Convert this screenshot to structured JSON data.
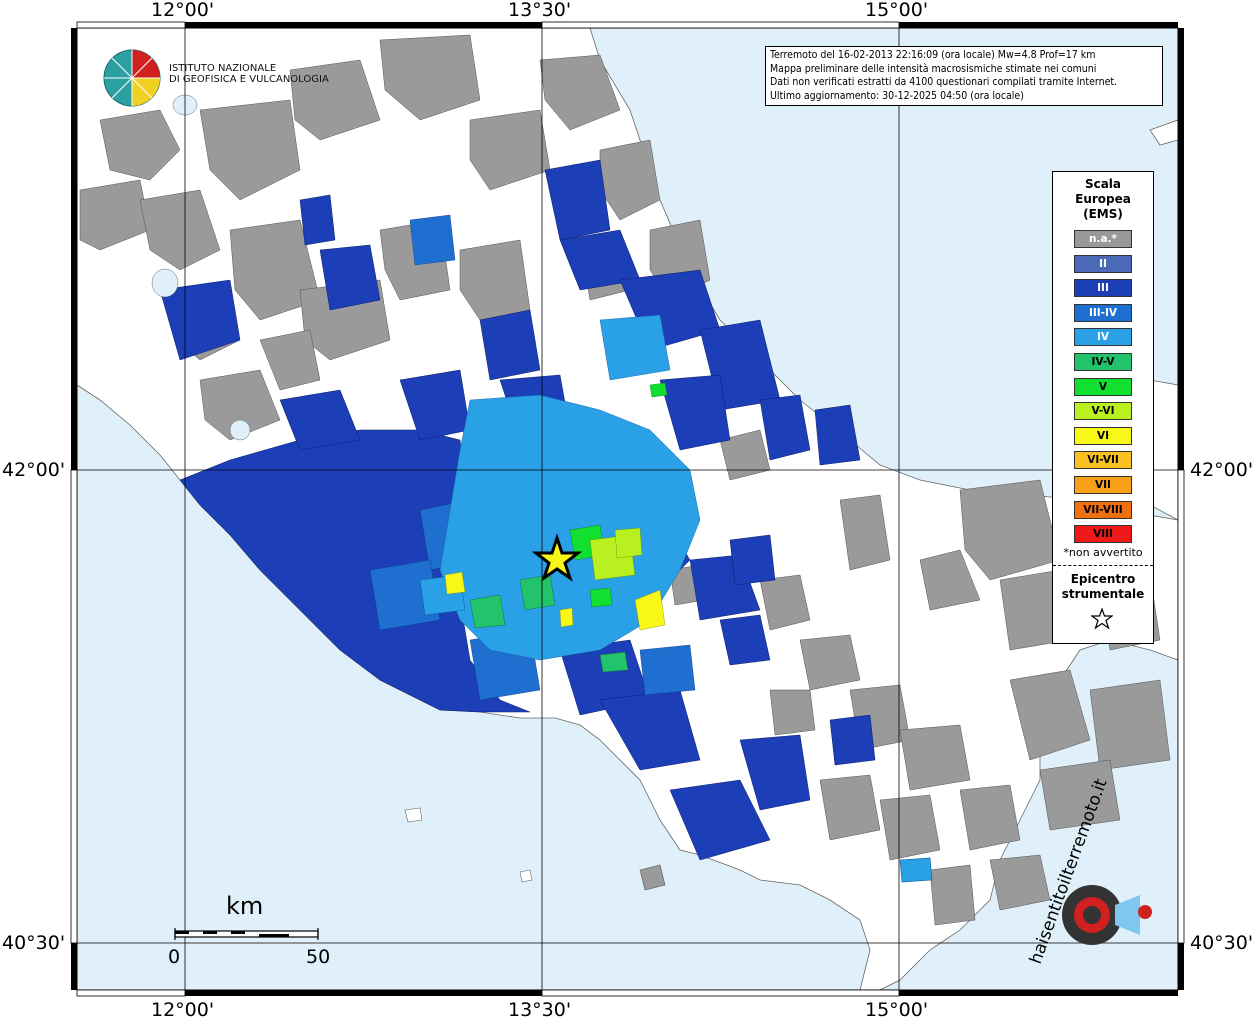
{
  "map": {
    "lon_labels": [
      "12°00'",
      "13°30'",
      "15°00'"
    ],
    "lat_labels": [
      "42°00'",
      "40°30'"
    ],
    "sea_color": "#e0f0fa",
    "land_color": "#ffffff",
    "grid_color": "#000000"
  },
  "info": {
    "line1": "Terremoto del 16-02-2013 22:16:09 (ora locale) Mw=4.8 Prof=17 km",
    "line2": "Mappa preliminare delle intensità macrosismiche stimate nei comuni",
    "line3": "Dati non verificati estratti da 4100 questionari compilati tramite Internet.",
    "line4": "Ultimo aggiornamento: 30-12-2025 04:50 (ora locale)"
  },
  "logo": {
    "line1": "ISTITUTO NAZIONALE",
    "line2": "DI GEOFISICA E VULCANOLOGIA"
  },
  "legend": {
    "title_line1": "Scala",
    "title_line2": "Europea",
    "title_line3": "(EMS)",
    "items": [
      {
        "label": "n.a.*",
        "color": "#999999",
        "text_color": "#ffffff"
      },
      {
        "label": "II",
        "color": "#4a6ab8",
        "text_color": "#ffffff"
      },
      {
        "label": "III",
        "color": "#1c3fb8",
        "text_color": "#ffffff"
      },
      {
        "label": "III-IV",
        "color": "#1e6fd0",
        "text_color": "#ffffff"
      },
      {
        "label": "IV",
        "color": "#2aa0e6",
        "text_color": "#ffffff"
      },
      {
        "label": "IV-V",
        "color": "#22c36a",
        "text_color": "#000000"
      },
      {
        "label": "V",
        "color": "#12e030",
        "text_color": "#000000"
      },
      {
        "label": "V-VI",
        "color": "#b8f020",
        "text_color": "#000000"
      },
      {
        "label": "VI",
        "color": "#f8f818",
        "text_color": "#000000"
      },
      {
        "label": "VI-VII",
        "color": "#f8c020",
        "text_color": "#000000"
      },
      {
        "label": "VII",
        "color": "#f8a018",
        "text_color": "#000000"
      },
      {
        "label": "VII-VIII",
        "color": "#f07010",
        "text_color": "#000000"
      },
      {
        "label": "VIII",
        "color": "#f01818",
        "text_color": "#000000"
      }
    ],
    "note": "*non avvertito",
    "epi_line1": "Epicentro",
    "epi_line2": "strumentale"
  },
  "scale_bar": {
    "unit": "km",
    "start": "0",
    "end": "50"
  },
  "watermark": {
    "text": "hai sentito il terremoto.it",
    "url": "www."
  }
}
